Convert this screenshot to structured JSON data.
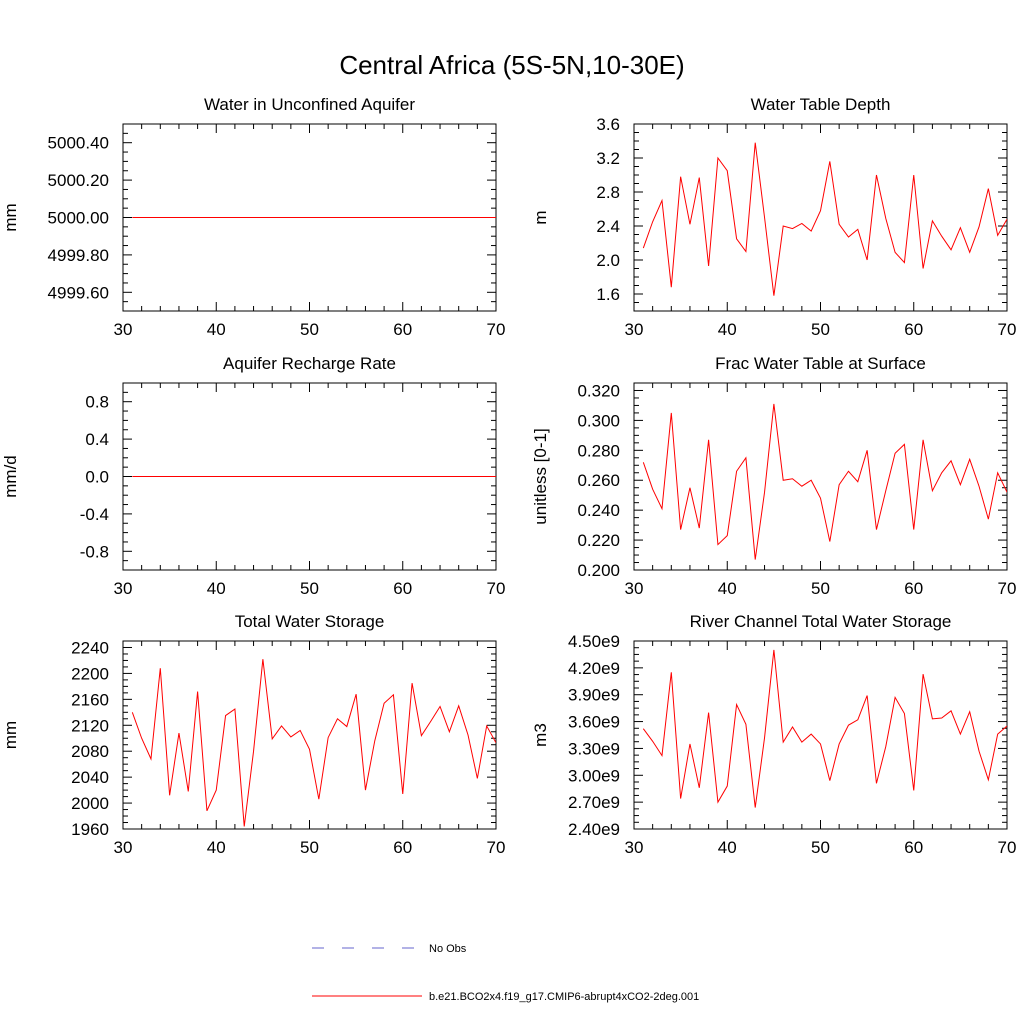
{
  "figure_title": "Central Africa (5S-5N,10-30E)",
  "colors": {
    "model": "#ff0000",
    "obs": "#6666cc",
    "axis": "#000000"
  },
  "legend": {
    "obs_label": "No Obs",
    "model_label": "b.e21.BCO2x4.f19_g17.CMIP6-abrupt4xCO2-2deg.001"
  },
  "chart_data": [
    {
      "type": "line",
      "title": "Water in Unconfined Aquifer",
      "ylabel": "mm",
      "xlim": [
        30,
        70
      ],
      "ylim": [
        4999.5,
        5000.5
      ],
      "yticks": [
        "4999.60",
        "4999.80",
        "5000.00",
        "5000.20",
        "5000.40"
      ],
      "xticks": [
        "30",
        "40",
        "50",
        "60",
        "70"
      ],
      "x": [
        31,
        70
      ],
      "series": [
        {
          "values": [
            5000.0,
            5000.0
          ]
        }
      ]
    },
    {
      "type": "line",
      "title": "Water Table Depth",
      "ylabel": "m",
      "xlim": [
        30,
        70
      ],
      "ylim": [
        1.4,
        3.6
      ],
      "yticks": [
        "1.6",
        "2.0",
        "2.4",
        "2.8",
        "3.2",
        "3.6"
      ],
      "xticks": [
        "30",
        "40",
        "50",
        "60",
        "70"
      ],
      "x": [
        31,
        32,
        33,
        34,
        35,
        36,
        37,
        38,
        39,
        40,
        41,
        42,
        43,
        44,
        45,
        46,
        47,
        48,
        49,
        50,
        51,
        52,
        53,
        54,
        55,
        56,
        57,
        58,
        59,
        60,
        61,
        62,
        63,
        64,
        65,
        66,
        67,
        68,
        69,
        70
      ],
      "series": [
        {
          "values": [
            2.14,
            2.45,
            2.7,
            1.68,
            2.98,
            2.42,
            2.97,
            1.93,
            3.2,
            3.05,
            2.25,
            2.1,
            3.38,
            2.5,
            1.58,
            2.4,
            2.37,
            2.43,
            2.34,
            2.58,
            3.16,
            2.42,
            2.27,
            2.36,
            2.0,
            3.0,
            2.49,
            2.09,
            1.97,
            3.0,
            1.9,
            2.46,
            2.28,
            2.12,
            2.38,
            2.09,
            2.39,
            2.84,
            2.29,
            2.48
          ]
        }
      ]
    },
    {
      "type": "line",
      "title": "Aquifer Recharge Rate",
      "ylabel": "mm/d",
      "xlim": [
        30,
        70
      ],
      "ylim": [
        -1.0,
        1.0
      ],
      "yticks": [
        "-0.8",
        "-0.4",
        "0.0",
        "0.4",
        "0.8"
      ],
      "xticks": [
        "30",
        "40",
        "50",
        "60",
        "70"
      ],
      "x": [
        31,
        70
      ],
      "series": [
        {
          "values": [
            0.0,
            0.0
          ]
        }
      ]
    },
    {
      "type": "line",
      "title": "Frac Water Table at Surface",
      "ylabel": "unitless [0-1]",
      "xlim": [
        30,
        70
      ],
      "ylim": [
        0.2,
        0.325
      ],
      "yticks": [
        "0.200",
        "0.220",
        "0.240",
        "0.260",
        "0.280",
        "0.300",
        "0.320"
      ],
      "xticks": [
        "30",
        "40",
        "50",
        "60",
        "70"
      ],
      "x": [
        31,
        32,
        33,
        34,
        35,
        36,
        37,
        38,
        39,
        40,
        41,
        42,
        43,
        44,
        45,
        46,
        47,
        48,
        49,
        50,
        51,
        52,
        53,
        54,
        55,
        56,
        57,
        58,
        59,
        60,
        61,
        62,
        63,
        64,
        65,
        66,
        67,
        68,
        69,
        70
      ],
      "series": [
        {
          "values": [
            0.272,
            0.254,
            0.241,
            0.305,
            0.227,
            0.255,
            0.228,
            0.287,
            0.217,
            0.223,
            0.266,
            0.275,
            0.207,
            0.252,
            0.311,
            0.26,
            0.261,
            0.256,
            0.26,
            0.248,
            0.219,
            0.257,
            0.266,
            0.259,
            0.28,
            0.227,
            0.253,
            0.278,
            0.284,
            0.227,
            0.287,
            0.253,
            0.265,
            0.273,
            0.257,
            0.274,
            0.256,
            0.234,
            0.265,
            0.252
          ]
        }
      ]
    },
    {
      "type": "line",
      "title": "Total Water Storage",
      "ylabel": "mm",
      "xlim": [
        30,
        70
      ],
      "ylim": [
        1960,
        2250
      ],
      "yticks": [
        "1960",
        "2000",
        "2040",
        "2080",
        "2120",
        "2160",
        "2200",
        "2240"
      ],
      "xticks": [
        "30",
        "40",
        "50",
        "60",
        "70"
      ],
      "x": [
        31,
        32,
        33,
        34,
        35,
        36,
        37,
        38,
        39,
        40,
        41,
        42,
        43,
        44,
        45,
        46,
        47,
        48,
        49,
        50,
        51,
        52,
        53,
        54,
        55,
        56,
        57,
        58,
        59,
        60,
        61,
        62,
        63,
        64,
        65,
        66,
        67,
        68,
        69,
        70
      ],
      "series": [
        {
          "values": [
            2140,
            2100,
            2068,
            2208,
            2012,
            2108,
            2018,
            2172,
            1988,
            2020,
            2135,
            2145,
            1964,
            2080,
            2222,
            2099,
            2119,
            2102,
            2112,
            2083,
            2006,
            2101,
            2130,
            2118,
            2168,
            2020,
            2096,
            2154,
            2167,
            2014,
            2185,
            2104,
            2126,
            2149,
            2110,
            2150,
            2105,
            2038,
            2119,
            2093
          ]
        }
      ]
    },
    {
      "type": "line",
      "title": "River Channel Total Water Storage",
      "ylabel": "m3",
      "xlim": [
        30,
        70
      ],
      "ylim": [
        2400000000,
        4500000000
      ],
      "yticks": [
        "2.40e9",
        "2.70e9",
        "3.00e9",
        "3.30e9",
        "3.60e9",
        "3.90e9",
        "4.20e9",
        "4.50e9"
      ],
      "xticks": [
        "30",
        "40",
        "50",
        "60",
        "70"
      ],
      "x": [
        31,
        32,
        33,
        34,
        35,
        36,
        37,
        38,
        39,
        40,
        41,
        42,
        43,
        44,
        45,
        46,
        47,
        48,
        49,
        50,
        51,
        52,
        53,
        54,
        55,
        56,
        57,
        58,
        59,
        60,
        61,
        62,
        63,
        64,
        65,
        66,
        67,
        68,
        69,
        70
      ],
      "series": [
        {
          "values": [
            3520000000,
            3380000000,
            3220000000,
            4150000000,
            2740000000,
            3350000000,
            2860000000,
            3700000000,
            2700000000,
            2880000000,
            3790000000,
            3570000000,
            2640000000,
            3420000000,
            4400000000,
            3370000000,
            3540000000,
            3370000000,
            3460000000,
            3350000000,
            2940000000,
            3350000000,
            3560000000,
            3620000000,
            3890000000,
            2910000000,
            3320000000,
            3870000000,
            3690000000,
            2830000000,
            4130000000,
            3630000000,
            3640000000,
            3720000000,
            3460000000,
            3710000000,
            3270000000,
            2950000000,
            3460000000,
            3550000000
          ]
        }
      ]
    }
  ]
}
